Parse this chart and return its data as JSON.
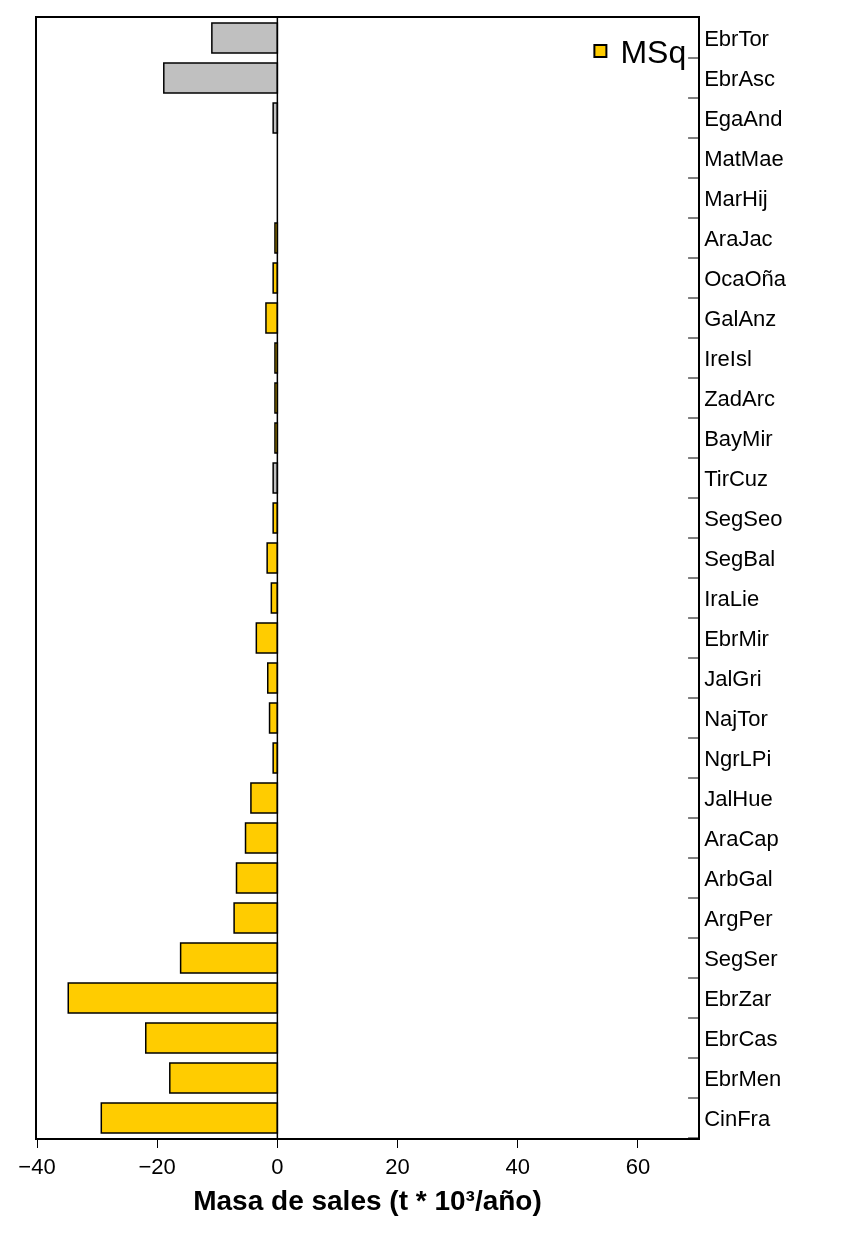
{
  "chart_data": {
    "type": "bar",
    "orientation": "horizontal",
    "xlabel": "Masa de sales (t * 10³/año)",
    "categories": [
      "EbrTor",
      "EbrAsc",
      "EgaAnd",
      "MatMae",
      "MarHij",
      "AraJac",
      "OcaOña",
      "GalAnz",
      "IreIsl",
      "ZadArc",
      "BayMir",
      "TirCuz",
      "SegSeo",
      "SegBal",
      "IraLie",
      "EbrMir",
      "JalGri",
      "NajTor",
      "NgrLPi",
      "JalHue",
      "AraCap",
      "ArbGal",
      "ArgPer",
      "SegSer",
      "EbrZar",
      "EbrCas",
      "EbrMen",
      "CinFra"
    ],
    "series": [
      {
        "name": "MSq",
        "color": "#ffcc00",
        "values": [
          -10.9,
          -18.9,
          -0.7,
          null,
          null,
          -0.4,
          -0.7,
          -1.9,
          -0.4,
          -0.4,
          -0.4,
          -0.7,
          -0.7,
          -1.7,
          -1.0,
          -3.5,
          -1.6,
          -1.3,
          -0.7,
          -4.4,
          -5.3,
          -6.8,
          -7.2,
          -16.1,
          -34.8,
          -21.9,
          -17.9,
          -29.3
        ],
        "colors": [
          "#c0c0c0",
          "#c0c0c0",
          "#c0c0c0",
          "#ffcc00",
          "#ffcc00",
          "#ffcc00",
          "#ffcc00",
          "#ffcc00",
          "#ffcc00",
          "#ffcc00",
          "#ffcc00",
          "#c0c0c0",
          "#ffcc00",
          "#ffcc00",
          "#ffcc00",
          "#ffcc00",
          "#ffcc00",
          "#ffcc00",
          "#ffcc00",
          "#ffcc00",
          "#ffcc00",
          "#ffcc00",
          "#ffcc00",
          "#ffcc00",
          "#ffcc00",
          "#ffcc00",
          "#ffcc00",
          "#ffcc00"
        ]
      }
    ],
    "xlim": [
      -40,
      70
    ],
    "xticks": [
      -40,
      -20,
      0,
      20,
      40,
      60
    ],
    "ref_lines": [
      {
        "axis": "x",
        "value": 0,
        "color": "#000000"
      }
    ],
    "legend": "top right"
  }
}
